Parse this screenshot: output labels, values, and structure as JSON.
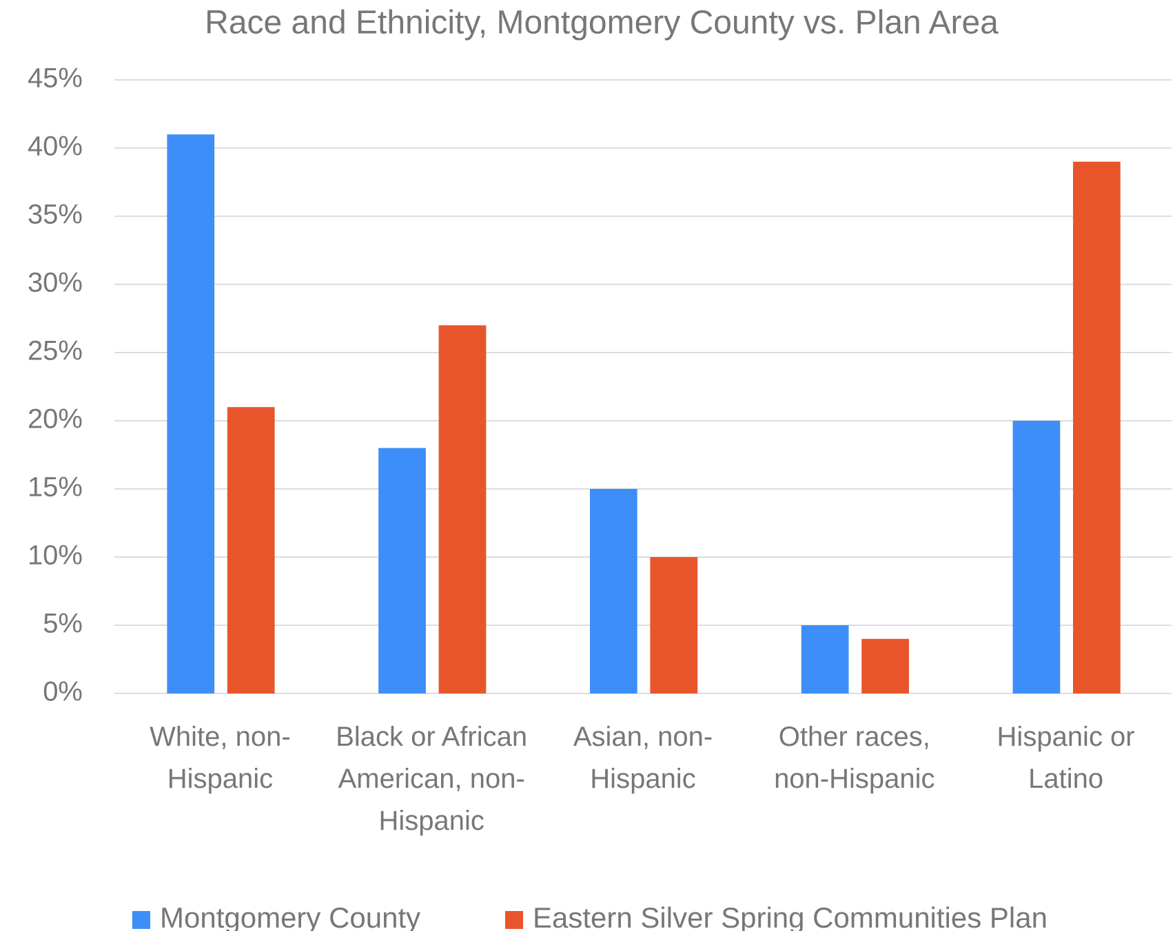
{
  "chart_data": {
    "type": "bar",
    "title": "Race and Ethnicity, Montgomery County vs. Plan Area",
    "categories": [
      "White, non-Hispanic",
      "Black or African American, non-Hispanic",
      "Asian, non-Hispanic",
      "Other races, non-Hispanic",
      "Hispanic or Latino"
    ],
    "series": [
      {
        "name": "Montgomery County",
        "color": "#3d8ef8",
        "values": [
          41,
          18,
          15,
          5,
          20
        ]
      },
      {
        "name": "Eastern Silver Spring Communities Plan",
        "color": "#e8552a",
        "values": [
          21,
          27,
          10,
          4,
          39
        ]
      }
    ],
    "ylim": [
      0,
      45
    ],
    "yticks": [
      {
        "value": 0,
        "label": "0%"
      },
      {
        "value": 5,
        "label": "5%"
      },
      {
        "value": 10,
        "label": "10%"
      },
      {
        "value": 15,
        "label": "15%"
      },
      {
        "value": 20,
        "label": "20%"
      },
      {
        "value": 25,
        "label": "25%"
      },
      {
        "value": 30,
        "label": "30%"
      },
      {
        "value": 35,
        "label": "35%"
      },
      {
        "value": 40,
        "label": "40%"
      },
      {
        "value": 45,
        "label": "45%"
      }
    ],
    "grid": true,
    "legend": "bottom"
  }
}
